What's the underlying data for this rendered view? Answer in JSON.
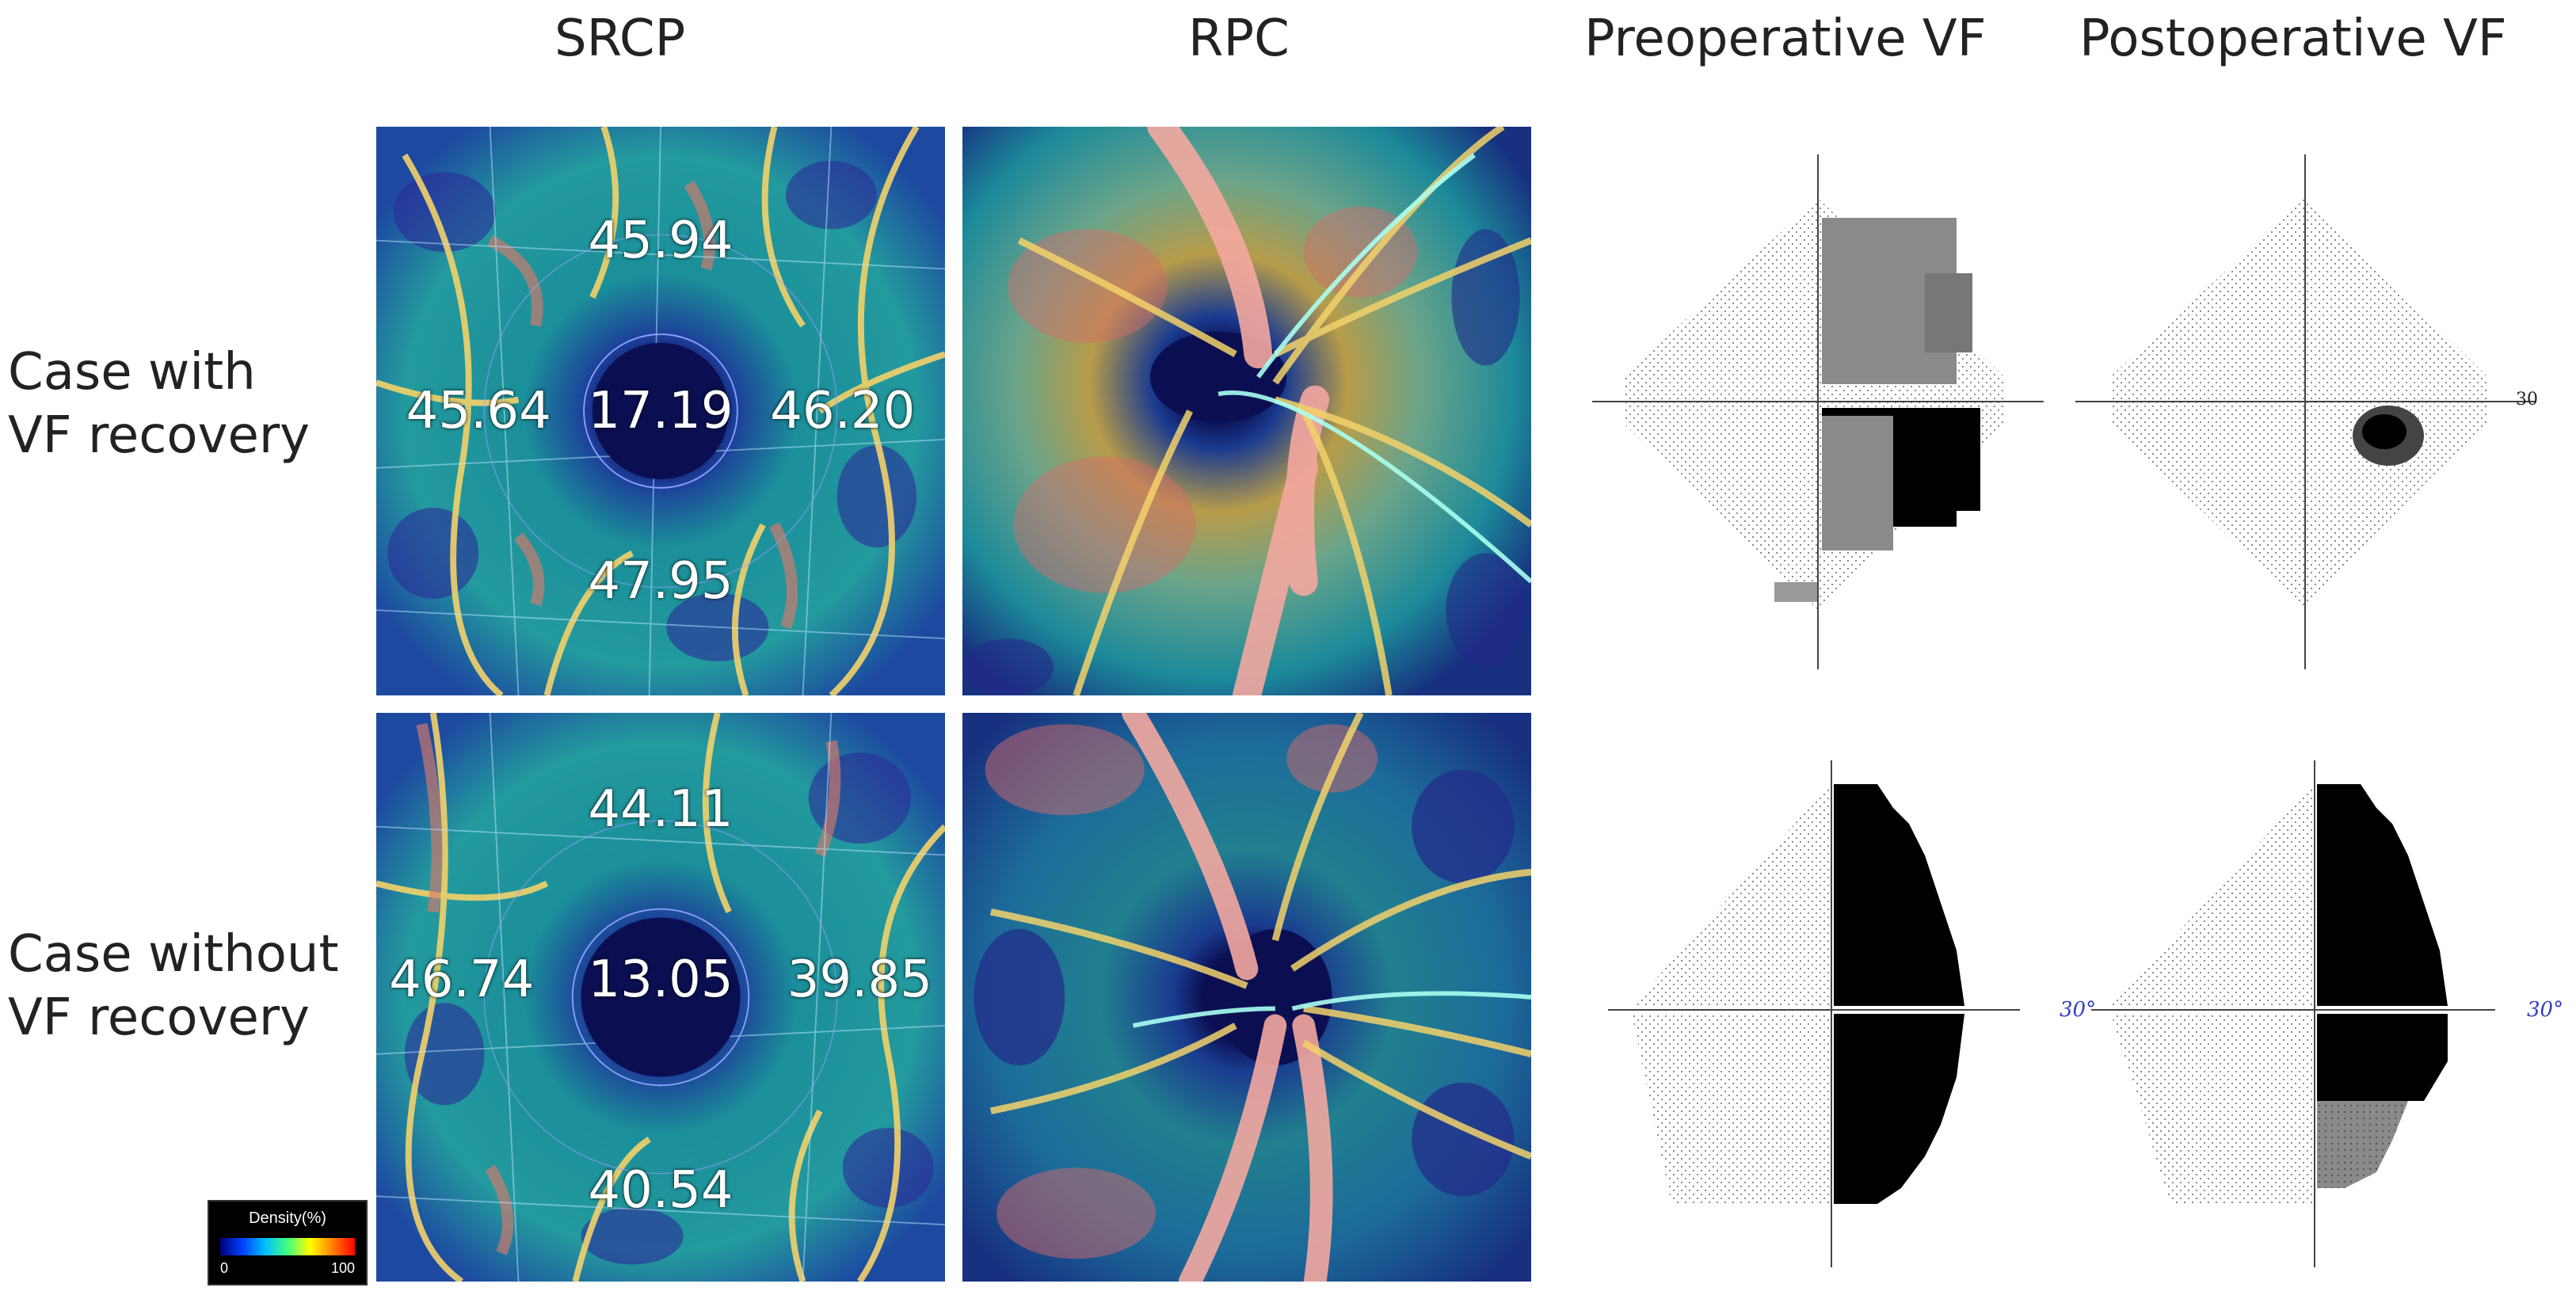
{
  "columns": {
    "srcp": "SRCP",
    "rpc": "RPC",
    "pre_vf": "Preoperative VF",
    "post_vf": "Postoperative VF"
  },
  "rows": {
    "with_recovery": {
      "line1": "Case with",
      "line2": "VF recovery"
    },
    "without_recovery": {
      "line1": "Case without",
      "line2": "VF recovery"
    }
  },
  "srcp_values": {
    "with_recovery": {
      "top": "45.94",
      "left": "45.64",
      "center": "17.19",
      "right": "46.20",
      "bottom": "47.95"
    },
    "without_recovery": {
      "top": "44.11",
      "left": "46.74",
      "center": "13.05",
      "right": "39.85",
      "bottom": "40.54"
    }
  },
  "density_legend": {
    "title": "Density(%)",
    "min": "0",
    "max": "100"
  },
  "vf_degree_labels": {
    "post_with_recovery": "30",
    "pre_without_recovery": "30°",
    "post_without_recovery": "30°"
  }
}
